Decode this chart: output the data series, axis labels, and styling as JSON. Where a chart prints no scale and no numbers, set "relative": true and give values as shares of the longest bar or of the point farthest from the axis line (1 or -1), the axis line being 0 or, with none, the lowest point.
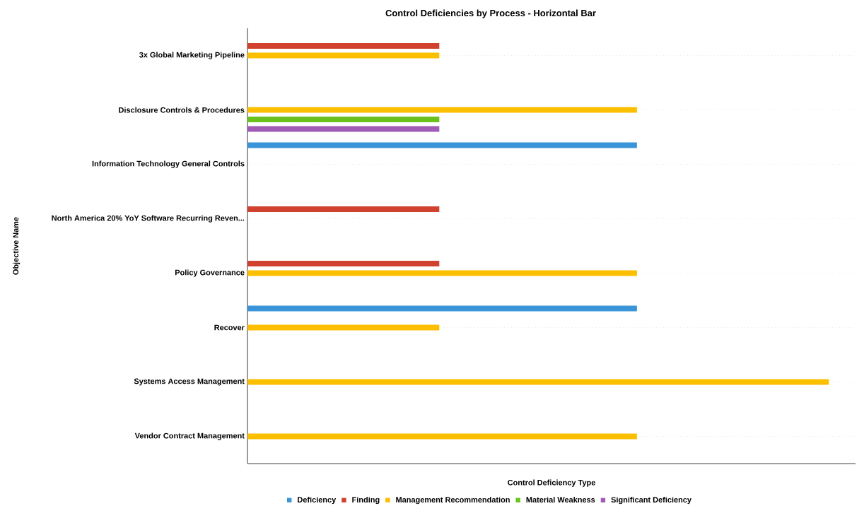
{
  "chart_data": {
    "type": "bar",
    "orientation": "horizontal",
    "relative": true,
    "title": "Control Deficiencies by Process - Horizontal Bar",
    "xlabel": "Control Deficiency Type",
    "ylabel": "Objective Name",
    "categories": [
      "3x Global Marketing Pipeline",
      "Disclosure Controls & Procedures",
      "Information Technology General Controls",
      "North America 20% YoY Software Recurring Reven...",
      "Policy Governance",
      "Recover",
      "Systems Access Management",
      "Vendor Contract Management"
    ],
    "series": [
      {
        "name": "Deficiency",
        "color": "#3a95d8",
        "values": [
          null,
          null,
          0.67,
          null,
          null,
          0.67,
          null,
          null
        ]
      },
      {
        "name": "Finding",
        "color": "#d0412f",
        "values": [
          0.33,
          null,
          null,
          0.33,
          0.33,
          null,
          null,
          null
        ]
      },
      {
        "name": "Management Recommendation",
        "color": "#fbbf00",
        "values": [
          0.33,
          0.67,
          null,
          null,
          0.67,
          0.33,
          1,
          0.67
        ]
      },
      {
        "name": "Material Weakness",
        "color": "#6cc21d",
        "values": [
          null,
          0.33,
          null,
          null,
          null,
          null,
          null,
          null
        ]
      },
      {
        "name": "Significant Deficiency",
        "color": "#a05bb5",
        "values": [
          null,
          0.33,
          null,
          null,
          null,
          null,
          null,
          null
        ]
      }
    ],
    "grid": "y",
    "legend": "bottom"
  }
}
